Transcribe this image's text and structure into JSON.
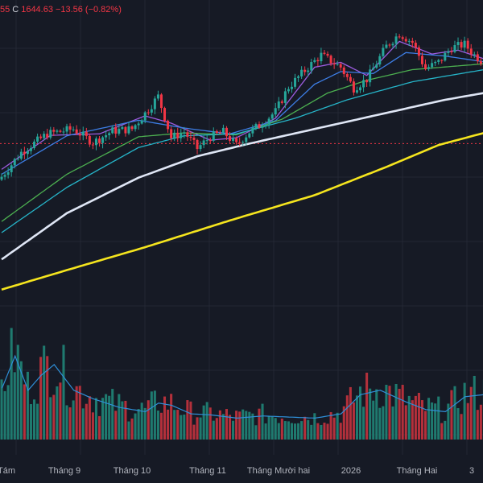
{
  "header": {
    "open_tail": "55",
    "close_label": "C",
    "close_value": "1644.63",
    "change": "−13.56",
    "change_pct": "(−0.82%)"
  },
  "colors": {
    "background": "#161a25",
    "grid": "#232733",
    "up": "#26a69a",
    "down": "#f23645",
    "vol_up": "#1f7a6f",
    "vol_down": "#b3303b",
    "ma_purple": "#9c5ce0",
    "ma_blue": "#3d7ee6",
    "ma_green": "#4caf50",
    "ma_cyan": "#26b5c9",
    "ma_white": "#dfe6f5",
    "ma_yellow": "#f5e51e",
    "vol_ma": "#2f8fd8",
    "ref_line": "#f23645"
  },
  "chart_data": {
    "type": "candlestick",
    "x_ticks": [
      "Tám",
      "Tháng 9",
      "Tháng 10",
      "Tháng 11",
      "Tháng Mười hai",
      "2026",
      "Tháng Hai",
      "3"
    ],
    "y_range": [
      1050,
      1720
    ],
    "last_close": 1644.63,
    "change": -13.56,
    "change_pct": -0.82,
    "price_path": [
      [
        0,
        1390
      ],
      [
        6,
        1440
      ],
      [
        14,
        1478
      ],
      [
        22,
        1488
      ],
      [
        28,
        1460
      ],
      [
        34,
        1484
      ],
      [
        40,
        1488
      ],
      [
        44,
        1520
      ],
      [
        48,
        1555
      ],
      [
        52,
        1470
      ],
      [
        56,
        1482
      ],
      [
        60,
        1448
      ],
      [
        64,
        1472
      ],
      [
        68,
        1482
      ],
      [
        72,
        1455
      ],
      [
        76,
        1482
      ],
      [
        80,
        1500
      ],
      [
        84,
        1524
      ],
      [
        88,
        1574
      ],
      [
        94,
        1615
      ],
      [
        98,
        1640
      ],
      [
        104,
        1615
      ],
      [
        108,
        1572
      ],
      [
        112,
        1590
      ],
      [
        118,
        1658
      ],
      [
        122,
        1684
      ],
      [
        126,
        1666
      ],
      [
        130,
        1612
      ],
      [
        134,
        1625
      ],
      [
        138,
        1655
      ],
      [
        142,
        1662
      ],
      [
        145,
        1640
      ],
      [
        148,
        1624
      ]
    ],
    "moving_averages": [
      {
        "color_key": "ma_purple",
        "points": [
          [
            0,
            1405
          ],
          [
            15,
            1475
          ],
          [
            30,
            1478
          ],
          [
            44,
            1515
          ],
          [
            52,
            1500
          ],
          [
            64,
            1465
          ],
          [
            72,
            1470
          ],
          [
            84,
            1510
          ],
          [
            96,
            1615
          ],
          [
            104,
            1625
          ],
          [
            112,
            1598
          ],
          [
            122,
            1668
          ],
          [
            132,
            1642
          ],
          [
            140,
            1650
          ],
          [
            148,
            1632
          ]
        ]
      },
      {
        "color_key": "ma_blue",
        "points": [
          [
            0,
            1395
          ],
          [
            20,
            1474
          ],
          [
            42,
            1506
          ],
          [
            56,
            1490
          ],
          [
            70,
            1478
          ],
          [
            84,
            1505
          ],
          [
            96,
            1580
          ],
          [
            104,
            1606
          ],
          [
            114,
            1602
          ],
          [
            124,
            1645
          ],
          [
            136,
            1638
          ],
          [
            148,
            1626
          ]
        ]
      },
      {
        "color_key": "ma_green",
        "points": [
          [
            0,
            1298
          ],
          [
            20,
            1395
          ],
          [
            42,
            1472
          ],
          [
            56,
            1480
          ],
          [
            72,
            1476
          ],
          [
            86,
            1508
          ],
          [
            100,
            1562
          ],
          [
            112,
            1588
          ],
          [
            126,
            1610
          ],
          [
            148,
            1622
          ]
        ]
      },
      {
        "color_key": "ma_cyan",
        "points": [
          [
            0,
            1275
          ],
          [
            20,
            1368
          ],
          [
            42,
            1450
          ],
          [
            56,
            1474
          ],
          [
            72,
            1478
          ],
          [
            90,
            1510
          ],
          [
            106,
            1548
          ],
          [
            126,
            1585
          ],
          [
            148,
            1610
          ]
        ]
      },
      {
        "color_key": "ma_white",
        "points": [
          [
            0,
            1220
          ],
          [
            20,
            1315
          ],
          [
            42,
            1388
          ],
          [
            60,
            1432
          ],
          [
            76,
            1458
          ],
          [
            96,
            1488
          ],
          [
            116,
            1518
          ],
          [
            136,
            1548
          ],
          [
            148,
            1562
          ]
        ]
      },
      {
        "color_key": "ma_yellow",
        "points": [
          [
            0,
            1158
          ],
          [
            20,
            1198
          ],
          [
            44,
            1245
          ],
          [
            70,
            1300
          ],
          [
            96,
            1352
          ],
          [
            118,
            1410
          ],
          [
            134,
            1455
          ],
          [
            148,
            1480
          ]
        ]
      }
    ],
    "ref_line_price": 1458,
    "volume_profile": [
      [
        0,
        0.48
      ],
      [
        4,
        0.78
      ],
      [
        8,
        0.46
      ],
      [
        12,
        0.6
      ],
      [
        16,
        0.7
      ],
      [
        22,
        0.46
      ],
      [
        28,
        0.38
      ],
      [
        36,
        0.3
      ],
      [
        44,
        0.26
      ],
      [
        48,
        0.34
      ],
      [
        52,
        0.32
      ],
      [
        58,
        0.24
      ],
      [
        64,
        0.23
      ],
      [
        72,
        0.2
      ],
      [
        80,
        0.22
      ],
      [
        88,
        0.21
      ],
      [
        96,
        0.2
      ],
      [
        104,
        0.24
      ],
      [
        110,
        0.42
      ],
      [
        116,
        0.46
      ],
      [
        124,
        0.35
      ],
      [
        130,
        0.28
      ],
      [
        136,
        0.26
      ],
      [
        142,
        0.4
      ],
      [
        148,
        0.42
      ]
    ]
  }
}
